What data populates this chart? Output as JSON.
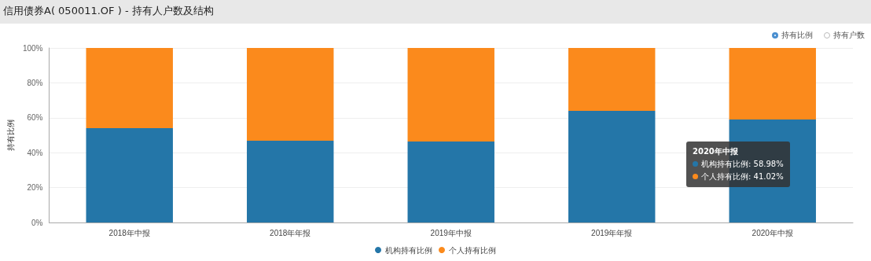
{
  "chart_data": {
    "type": "bar",
    "stacked": true,
    "title": "信用债券A( 050011.OF ) - 持有人户数及结构",
    "ylabel": "持有比例",
    "categories": [
      "2018年中报",
      "2018年年报",
      "2019年中报",
      "2019年年报",
      "2020年中报"
    ],
    "series": [
      {
        "name": "机构持有比例",
        "color": "#2476a8",
        "values": [
          54.1,
          46.8,
          46.4,
          64.0,
          58.98
        ]
      },
      {
        "name": "个人持有比例",
        "color": "#fb8a1c",
        "values": [
          45.9,
          53.2,
          53.6,
          36.0,
          41.02
        ]
      }
    ],
    "ylim": [
      0,
      100
    ],
    "yticks": [
      {
        "value": 0,
        "label": "0%"
      },
      {
        "value": 20,
        "label": "20%"
      },
      {
        "value": 40,
        "label": "40%"
      },
      {
        "value": 60,
        "label": "60%"
      },
      {
        "value": 80,
        "label": "80%"
      },
      {
        "value": 100,
        "label": "100%"
      }
    ],
    "grid": "y",
    "legend": "bottom",
    "annotations": [
      "持有比例",
      "持有户数",
      "2020年中报",
      "机构持有比例: 58.98%",
      "个人持有比例: 41.02%"
    ]
  }
}
